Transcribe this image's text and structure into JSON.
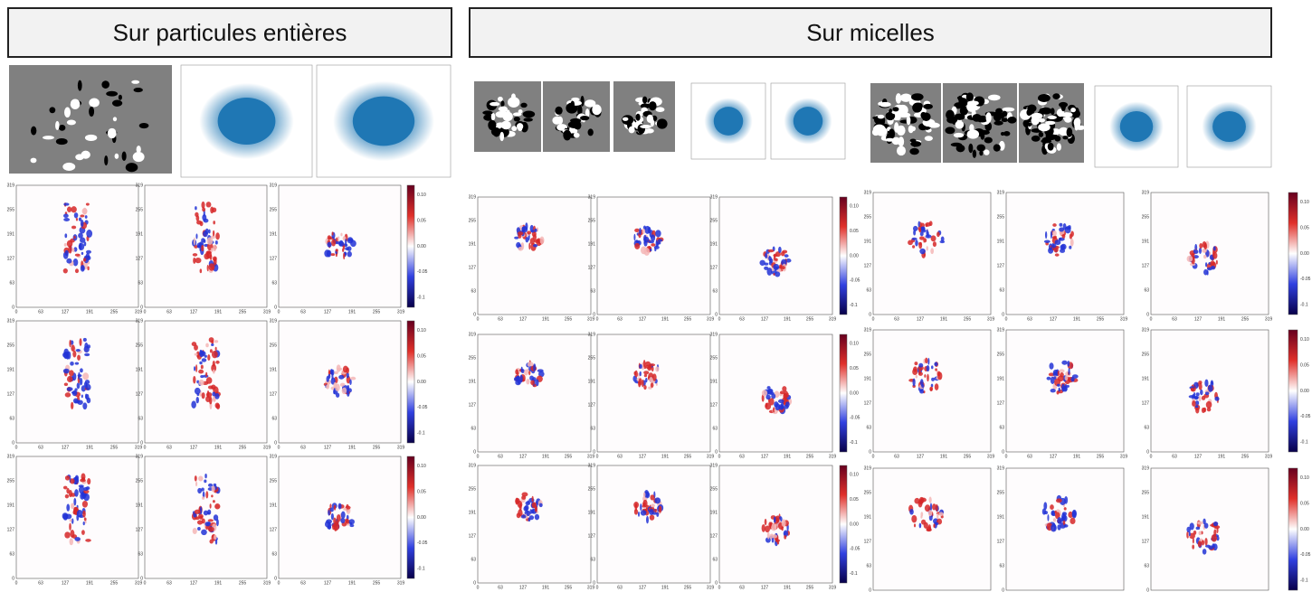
{
  "header": {
    "left": "Sur particules entières",
    "right": "Sur micelles"
  },
  "heatmap_axis": {
    "ticks": [
      "0",
      "63",
      "127",
      "191",
      "255",
      "319"
    ]
  },
  "colorbar": {
    "ticks": [
      "0.10",
      "0.05",
      "0.00",
      "-0.05",
      "-0.1"
    ]
  }
}
